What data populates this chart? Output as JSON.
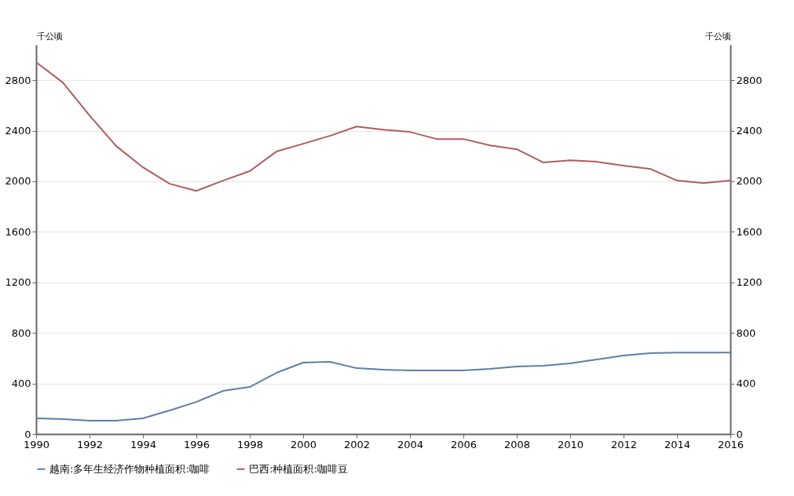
{
  "chart_data": {
    "type": "line",
    "ylabel": "千公顷",
    "y2label": "千公顷",
    "x": [
      1990,
      1991,
      1992,
      1993,
      1994,
      1995,
      1996,
      1997,
      1998,
      1999,
      2000,
      2001,
      2002,
      2003,
      2004,
      2005,
      2006,
      2007,
      2008,
      2009,
      2010,
      2011,
      2012,
      2013,
      2014,
      2015,
      2016
    ],
    "series": [
      {
        "name": "越南:多年生经济作物种植面积:咖啡",
        "color": "#5b7fa8",
        "values": [
          124,
          118,
          106,
          106,
          124,
          186,
          254,
          341,
          372,
          484,
          565,
          571,
          521,
          509,
          503,
          503,
          503,
          515,
          534,
          540,
          559,
          590,
          621,
          639,
          645,
          645,
          645
        ]
      },
      {
        "name": "巴西:种植面积:咖啡豆",
        "color": "#b05c5c",
        "axis": "y2",
        "values": [
          2942,
          2781,
          2520,
          2278,
          2110,
          1980,
          1924,
          2005,
          2080,
          2235,
          2297,
          2359,
          2433,
          2408,
          2390,
          2334,
          2334,
          2284,
          2253,
          2148,
          2166,
          2154,
          2123,
          2098,
          2005,
          1986,
          2005
        ]
      }
    ],
    "xlim": [
      1990,
      2016
    ],
    "xticks": [
      1990,
      1992,
      1994,
      1996,
      1998,
      2000,
      2002,
      2004,
      2006,
      2008,
      2010,
      2012,
      2014,
      2016
    ],
    "ylim": [
      0,
      3080
    ],
    "yticks": [
      0,
      400,
      800,
      1200,
      1600,
      2000,
      2400,
      2800
    ],
    "y2lim": [
      0,
      3080
    ],
    "y2ticks": [
      0,
      400,
      800,
      1200,
      1600,
      2000,
      2400,
      2800
    ],
    "grid": "y",
    "legend": "bottom",
    "marker": "none",
    "line_style": "solid"
  }
}
